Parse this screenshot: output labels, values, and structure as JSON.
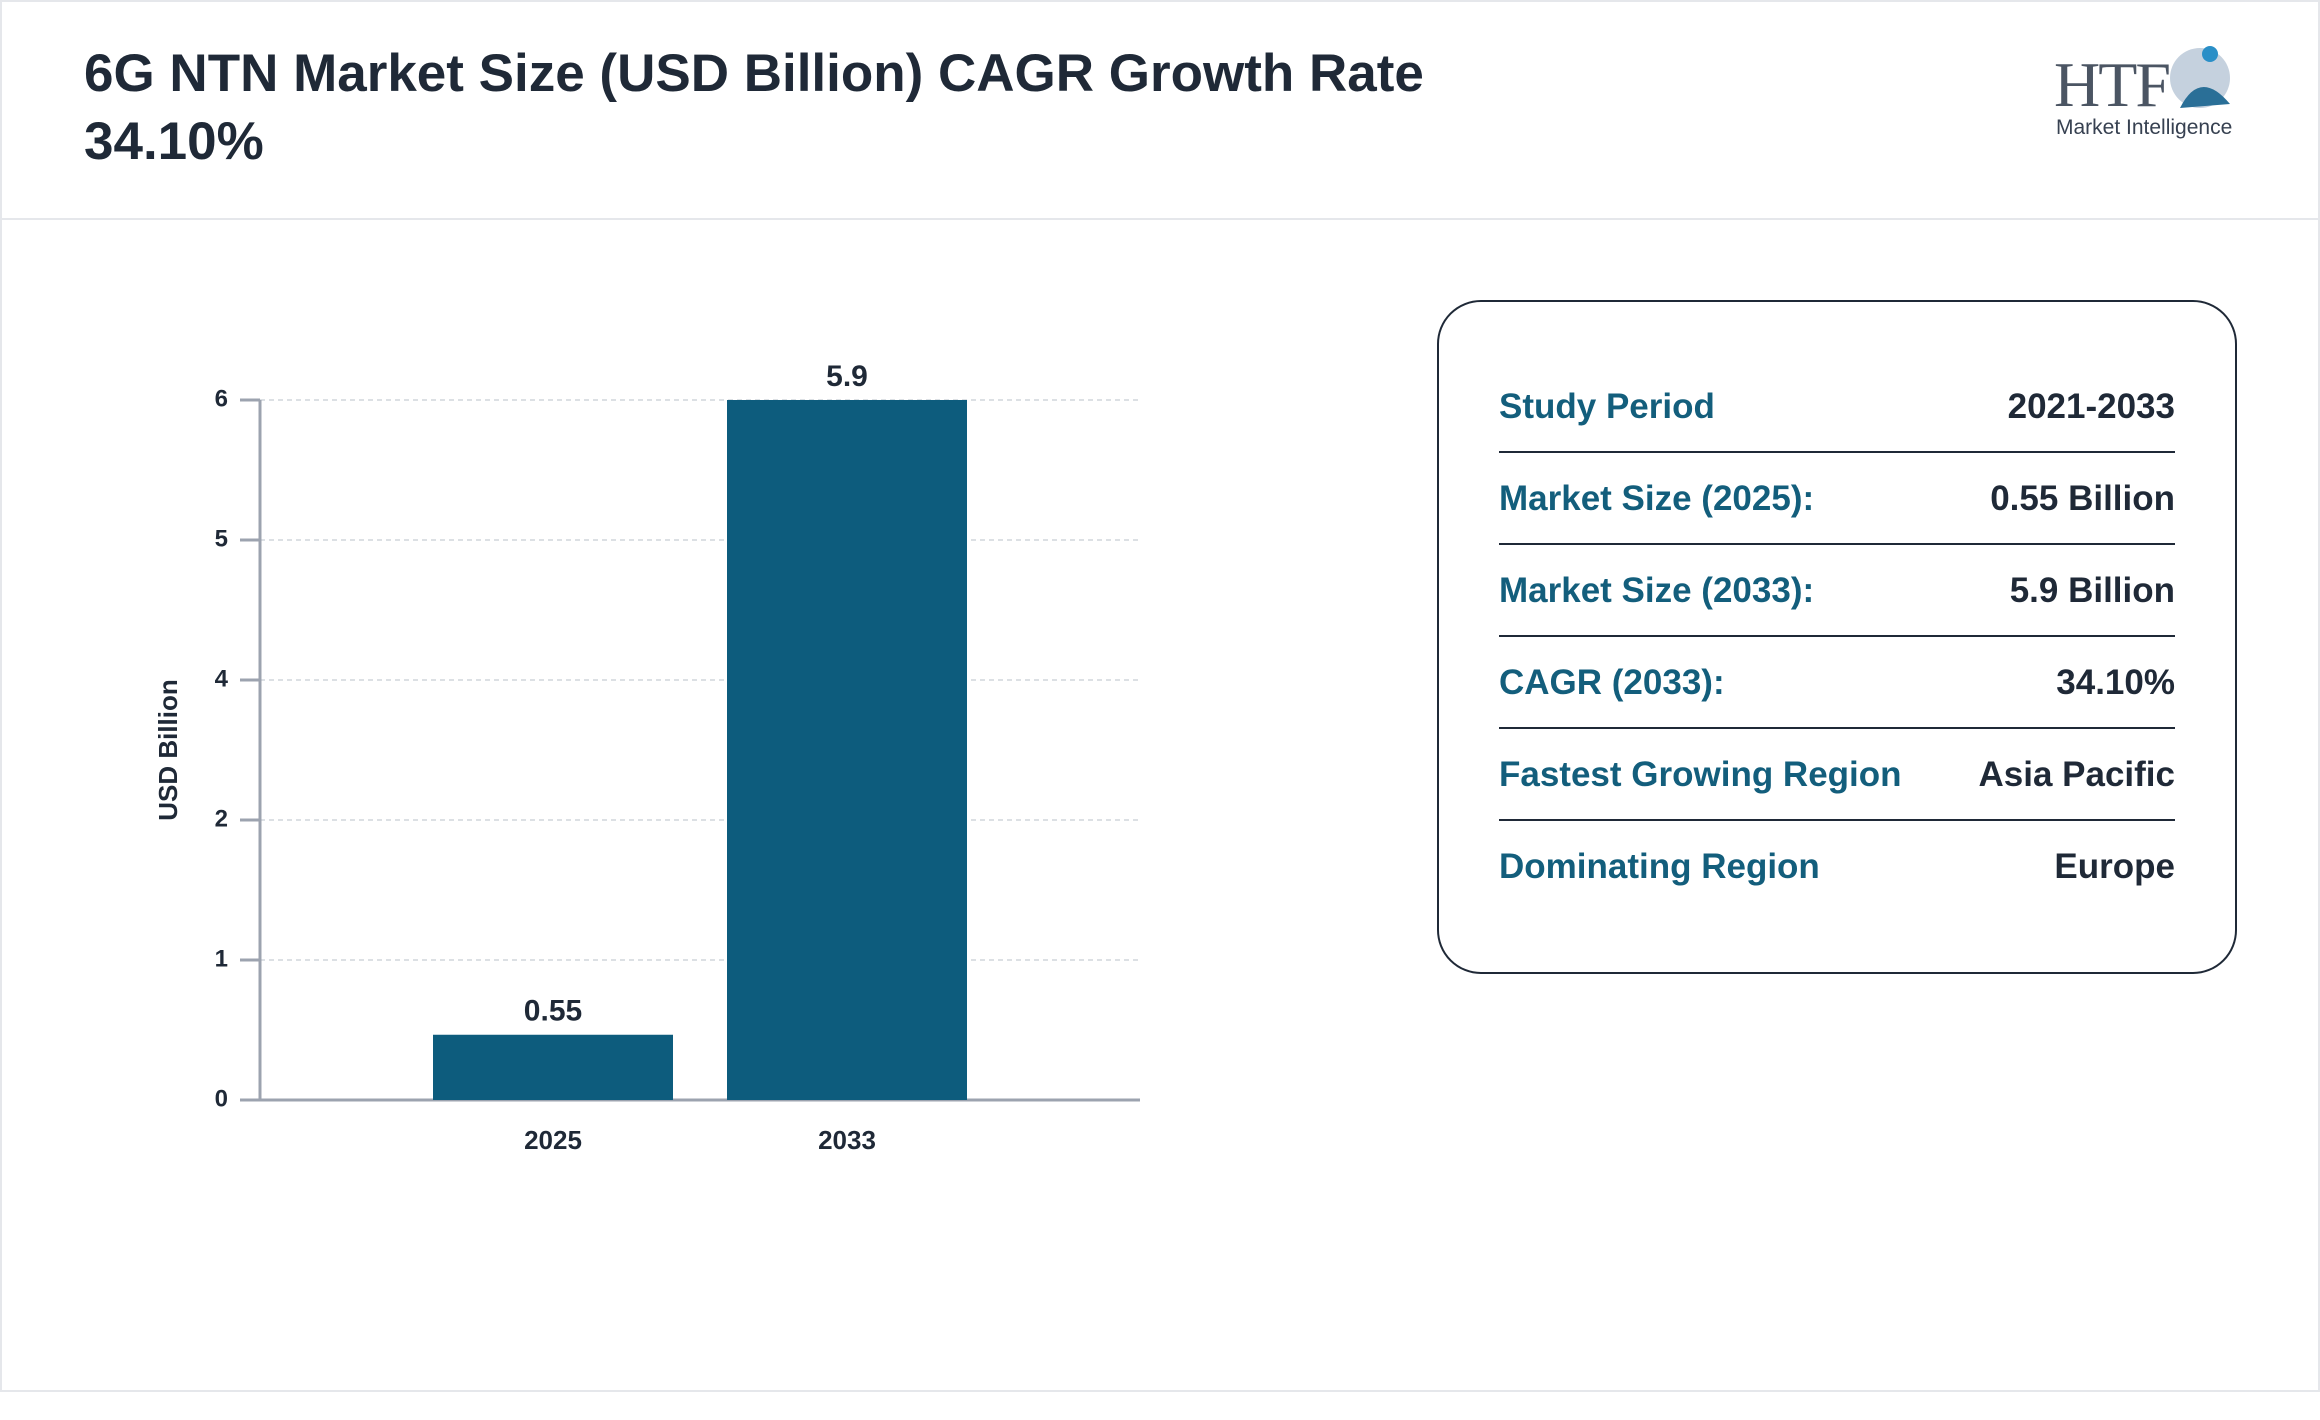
{
  "chart_data": {
    "type": "bar",
    "title": "6G NTN Market Size (USD Billion) CAGR Growth Rate 34.10%",
    "y_label": "USD Billion",
    "categories": [
      "2025",
      "2033"
    ],
    "values": [
      0.55,
      5.9
    ],
    "color": "#0d5c7d",
    "ylim": [
      0,
      5.9
    ],
    "yticks": [
      0,
      {
        "value": 1.18,
        "label": "1"
      },
      {
        "value": 2.36,
        "label": "2"
      },
      {
        "value": 3.54,
        "label": "4"
      },
      {
        "value": 4.72,
        "label": "5"
      },
      {
        "value": 5.9,
        "label": "6"
      }
    ],
    "grid": true
  },
  "logo": {
    "mark": "HTF",
    "text": "Market Intelligence"
  },
  "summary": {
    "rows": [
      [
        "Study Period",
        "2021-2033"
      ],
      [
        "Market Size (2025):",
        "0.55 Billion"
      ],
      [
        "Market Size (2033):",
        "5.9 Billion"
      ],
      [
        "CAGR (2033):",
        "34.10%"
      ],
      [
        "Fastest Growing Region",
        "Asia Pacific"
      ],
      [
        "Dominating Region",
        "Europe"
      ]
    ]
  }
}
